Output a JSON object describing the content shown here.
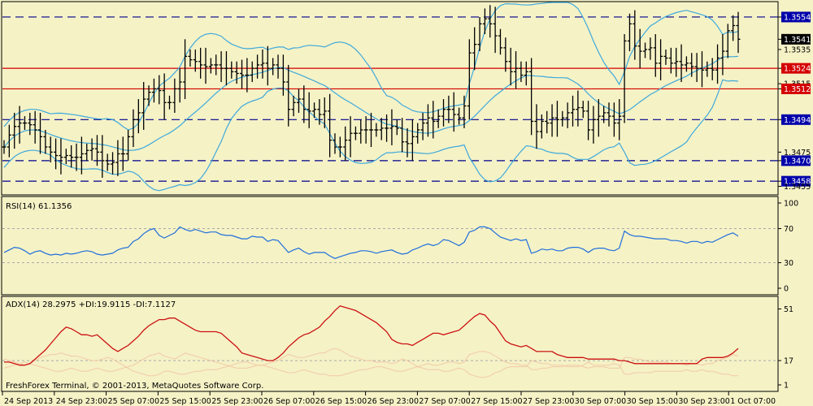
{
  "copyright": "FreshForex Terminal, © 2001-2013, MetaQuotes Software Corp.",
  "colors": {
    "background": "#f5f2c6",
    "frame": "#000000",
    "bars": "#000000",
    "bands": "#3ea9dc",
    "levels_red": "#d40000",
    "levels_blue": "#00008b",
    "rsi": "#1f6fdb",
    "adx": "#cc1111",
    "di": "#f2c9a8",
    "tag_red": "#d40000",
    "tag_blue": "#0000aa",
    "tag_dark": "#000000"
  },
  "chart_data": [
    {
      "type": "ohlc",
      "series_name": "EURUSD",
      "ylim": [
        1.345,
        1.3563
      ],
      "y_tick_labels": [
        "1.3554",
        "1.3541",
        "1.3535",
        "1.3524",
        "1.3515",
        "1.3512",
        "1.3494",
        "1.3475",
        "1.3470",
        "1.3458",
        "1.3455"
      ],
      "horizontal_levels": [
        {
          "value": 1.3554,
          "label": "1.3554",
          "style": "dashed",
          "color": "blue"
        },
        {
          "value": 1.3524,
          "label": "1.3524",
          "style": "solid",
          "color": "red"
        },
        {
          "value": 1.3512,
          "label": "1.3512",
          "style": "solid",
          "color": "red"
        },
        {
          "value": 1.3494,
          "label": "1.3494",
          "style": "dashed",
          "color": "blue"
        },
        {
          "value": 1.347,
          "label": "1.3470",
          "style": "dashed",
          "color": "blue"
        },
        {
          "value": 1.3458,
          "label": "1.3458",
          "style": "dashed",
          "color": "blue"
        }
      ],
      "current_price": {
        "value": 1.3541,
        "label": "1.3541"
      },
      "x_tick_labels": [
        "24 Sep 2013",
        "24 Sep 23:00",
        "25 Sep 07:00",
        "25 Sep 15:00",
        "25 Sep 23:00",
        "26 Sep 07:00",
        "26 Sep 15:00",
        "26 Sep 23:00",
        "27 Sep 07:00",
        "27 Sep 15:00",
        "27 Sep 23:00",
        "30 Sep 07:00",
        "30 Sep 15:00",
        "30 Sep 23:00",
        "1 Oct 07:00"
      ],
      "close": [
        1.3478,
        1.3485,
        1.349,
        1.3492,
        1.3492,
        1.3491,
        1.3488,
        1.3484,
        1.3478,
        1.3475,
        1.3473,
        1.3472,
        1.3473,
        1.3472,
        1.3472,
        1.3474,
        1.3476,
        1.3477,
        1.3475,
        1.347,
        1.3468,
        1.3469,
        1.3474,
        1.3474,
        1.3484,
        1.3494,
        1.3498,
        1.3506,
        1.351,
        1.3512,
        1.3511,
        1.3504,
        1.3504,
        1.3512,
        1.3516,
        1.3531,
        1.3529,
        1.3528,
        1.3526,
        1.3525,
        1.3526,
        1.3526,
        1.3524,
        1.3524,
        1.3522,
        1.3521,
        1.352,
        1.352,
        1.3524,
        1.3526,
        1.3527,
        1.3524,
        1.3526,
        1.3524,
        1.3516,
        1.35,
        1.3504,
        1.3506,
        1.35,
        1.3499,
        1.35,
        1.3497,
        1.3499,
        1.3482,
        1.3478,
        1.3478,
        1.3482,
        1.3486,
        1.3486,
        1.3488,
        1.3488,
        1.3488,
        1.3488,
        1.3489,
        1.3489,
        1.349,
        1.3489,
        1.3481,
        1.348,
        1.3484,
        1.3488,
        1.3492,
        1.3495,
        1.3493,
        1.3496,
        1.35,
        1.35,
        1.3497,
        1.3495,
        1.3502,
        1.3533,
        1.3538,
        1.355,
        1.3553,
        1.355,
        1.3543,
        1.3536,
        1.3528,
        1.3522,
        1.3524,
        1.352,
        1.3522,
        1.3493,
        1.3487,
        1.3493,
        1.3492,
        1.3495,
        1.3494,
        1.3495,
        1.3498,
        1.35,
        1.3501,
        1.3499,
        1.3488,
        1.3494,
        1.3496,
        1.3498,
        1.3496,
        1.3492,
        1.3496,
        1.354,
        1.355,
        1.3537,
        1.3534,
        1.3535,
        1.3536,
        1.3527,
        1.3531,
        1.353,
        1.3527,
        1.3528,
        1.3526,
        1.3527,
        1.3525,
        1.3524,
        1.3523,
        1.3524,
        1.3523,
        1.353,
        1.3534,
        1.3546,
        1.3549,
        1.3541
      ],
      "bands": {
        "period": 20,
        "deviations": 2
      }
    },
    {
      "type": "line",
      "series_name": "RSI(14)",
      "header": "RSI(14) 61.1356",
      "ylim": [
        0,
        100
      ],
      "y_tick_labels": [
        "100",
        "70",
        "30",
        "0"
      ],
      "levels": [
        70,
        30
      ],
      "values": [
        42,
        45,
        48,
        47,
        44,
        40,
        43,
        44,
        41,
        39,
        40,
        39,
        41,
        40,
        41,
        43,
        44,
        43,
        40,
        39,
        40,
        41,
        45,
        47,
        48,
        55,
        58,
        64,
        68,
        70,
        62,
        59,
        62,
        65,
        72,
        69,
        67,
        69,
        67,
        65,
        66,
        66,
        63,
        62,
        62,
        60,
        58,
        58,
        61,
        60,
        60,
        55,
        57,
        56,
        49,
        42,
        45,
        47,
        43,
        40,
        42,
        42,
        42,
        38,
        35,
        37,
        39,
        41,
        42,
        44,
        44,
        43,
        41,
        43,
        44,
        45,
        42,
        40,
        41,
        45,
        47,
        50,
        52,
        50,
        52,
        57,
        56,
        53,
        50,
        54,
        66,
        68,
        72,
        72,
        70,
        65,
        60,
        58,
        56,
        58,
        56,
        57,
        41,
        43,
        46,
        45,
        46,
        44,
        44,
        47,
        48,
        48,
        46,
        42,
        46,
        47,
        47,
        45,
        44,
        47,
        67,
        63,
        61,
        61,
        60,
        59,
        58,
        58,
        58,
        56,
        56,
        55,
        53,
        55,
        55,
        53,
        55,
        54,
        57,
        60,
        63,
        65,
        61
      ]
    },
    {
      "type": "line",
      "series_name": "ADX(14)",
      "header": "ADX(14) 28.2975 +DI:19.9115 -DI:7.1127",
      "ylim": [
        1,
        55
      ],
      "y_tick_labels": [
        "51",
        "17",
        "1"
      ],
      "levels": [
        17
      ],
      "values": [
        16,
        16,
        15,
        14,
        14,
        15,
        18,
        21,
        24,
        28,
        32,
        36,
        39,
        38,
        36,
        34,
        34,
        33,
        34,
        31,
        28,
        25,
        23,
        25,
        27,
        30,
        33,
        37,
        40,
        42,
        44,
        44,
        45,
        45,
        43,
        41,
        39,
        37,
        36,
        36,
        36,
        36,
        35,
        32,
        29,
        26,
        22,
        21,
        20,
        19,
        18,
        17,
        17,
        19,
        22,
        26,
        29,
        32,
        34,
        35,
        37,
        39,
        43,
        46,
        50,
        53,
        52,
        51,
        50,
        48,
        46,
        44,
        42,
        39,
        36,
        31,
        29,
        28,
        28,
        27,
        29,
        31,
        33,
        35,
        35,
        34,
        35,
        36,
        37,
        40,
        43,
        46,
        48,
        47,
        43,
        40,
        35,
        30,
        28,
        27,
        26,
        27,
        25,
        23,
        23,
        23,
        23,
        21,
        20,
        19,
        19,
        19,
        19,
        18,
        18,
        18,
        18,
        18,
        18,
        17,
        17,
        16,
        15,
        15,
        15,
        15,
        15,
        15,
        15,
        15,
        15,
        15,
        15,
        15,
        15,
        18,
        19,
        19,
        19,
        19,
        20,
        22,
        25
      ],
      "plus_di": [
        12,
        13,
        14,
        15,
        16,
        15,
        14,
        13,
        12,
        11,
        10,
        10,
        11,
        12,
        11,
        10,
        10,
        11,
        12,
        11,
        10,
        10,
        11,
        12,
        13,
        14,
        16,
        18,
        20,
        21,
        22,
        20,
        19,
        18,
        20,
        22,
        21,
        20,
        19,
        18,
        17,
        16,
        15,
        14,
        13,
        12,
        12,
        12,
        13,
        14,
        14,
        13,
        12,
        11,
        10,
        9,
        9,
        10,
        11,
        10,
        9,
        8,
        8,
        7,
        7,
        7,
        8,
        9,
        10,
        11,
        11,
        12,
        13,
        13,
        12,
        11,
        10,
        10,
        11,
        12,
        13,
        14,
        15,
        14,
        14,
        15,
        16,
        16,
        15,
        16,
        21,
        22,
        23,
        23,
        22,
        20,
        18,
        16,
        15,
        15,
        14,
        14,
        11,
        11,
        12,
        12,
        13,
        13,
        13,
        14,
        14,
        14,
        13,
        12,
        13,
        13,
        13,
        12,
        12,
        12,
        19,
        19,
        18,
        18,
        17,
        16,
        16,
        16,
        16,
        15,
        15,
        15,
        14,
        15,
        15,
        14,
        15,
        15,
        17,
        18,
        19,
        21,
        20
      ],
      "minus_di": [
        18,
        17,
        16,
        15,
        14,
        15,
        17,
        19,
        20,
        21,
        21,
        22,
        21,
        20,
        20,
        19,
        18,
        17,
        17,
        18,
        19,
        18,
        16,
        14,
        12,
        10,
        9,
        8,
        7,
        7,
        8,
        10,
        10,
        9,
        8,
        8,
        9,
        10,
        10,
        11,
        11,
        11,
        12,
        13,
        14,
        15,
        16,
        16,
        15,
        14,
        14,
        15,
        16,
        17,
        19,
        21,
        20,
        19,
        19,
        20,
        21,
        22,
        22,
        24,
        25,
        24,
        22,
        20,
        19,
        18,
        17,
        17,
        16,
        16,
        16,
        15,
        16,
        18,
        17,
        15,
        13,
        12,
        11,
        11,
        11,
        10,
        10,
        11,
        12,
        11,
        8,
        7,
        6,
        6,
        7,
        9,
        10,
        12,
        13,
        13,
        13,
        13,
        17,
        16,
        15,
        15,
        14,
        14,
        14,
        13,
        13,
        13,
        14,
        16,
        14,
        14,
        14,
        14,
        15,
        14,
        8,
        8,
        9,
        9,
        9,
        9,
        10,
        10,
        10,
        10,
        10,
        10,
        11,
        10,
        10,
        11,
        10,
        10,
        9,
        8,
        8,
        7,
        7
      ]
    }
  ]
}
